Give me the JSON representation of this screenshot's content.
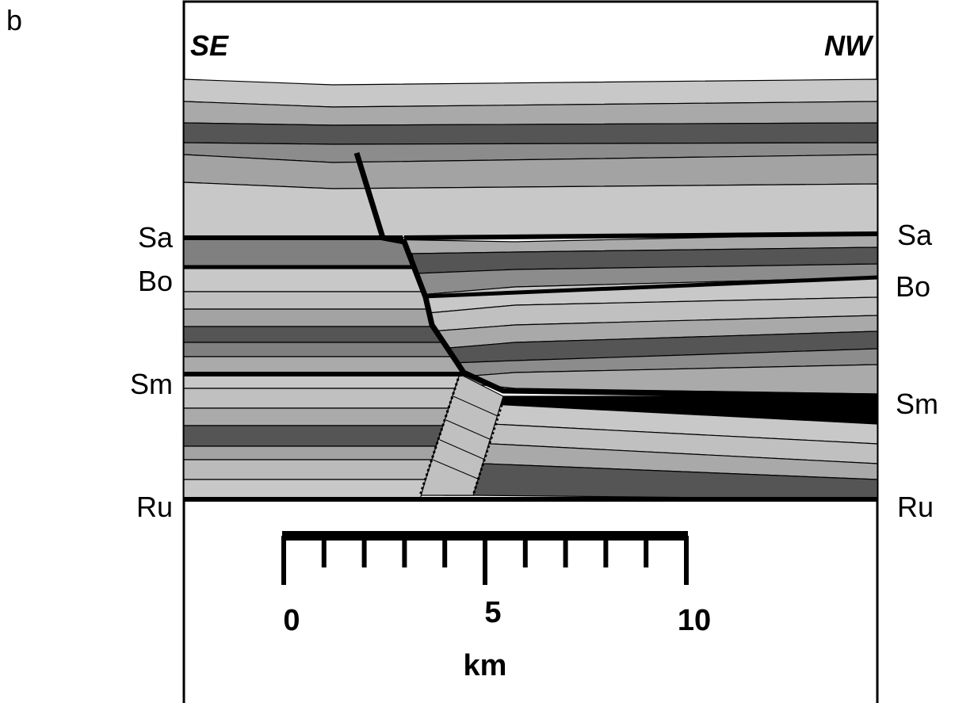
{
  "panel_label": "b",
  "direction_left": "SE",
  "direction_right": "NW",
  "left_labels": [
    "Sa",
    "Bo",
    "Sm",
    "Ru"
  ],
  "right_labels": [
    "Sa",
    "Bo",
    "Sm",
    "Ru"
  ],
  "scale": {
    "labels": [
      0,
      5,
      10
    ],
    "unit": "km"
  }
}
